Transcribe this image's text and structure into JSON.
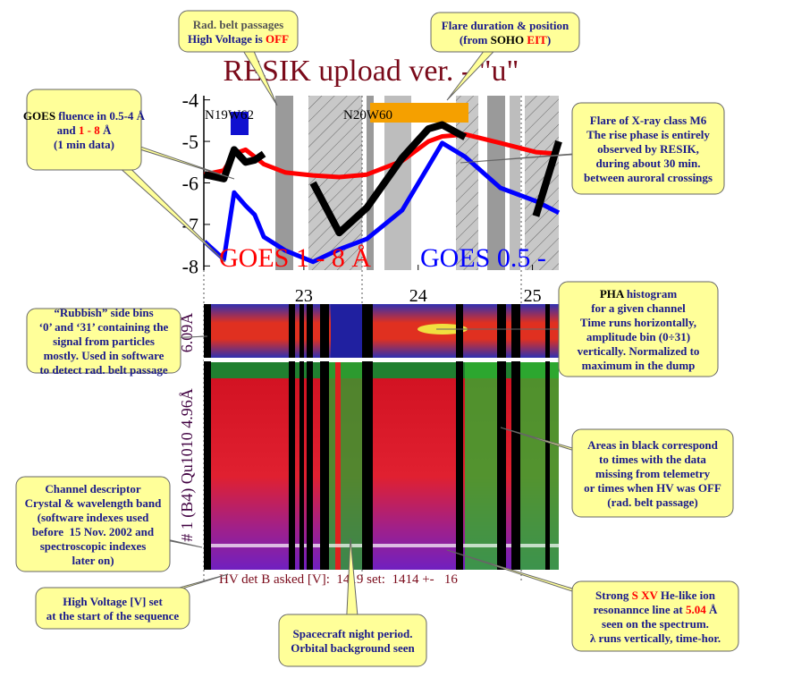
{
  "chart_data": {
    "type": "line",
    "title": "RESIK upload ver. - \"u\"",
    "x": [
      22.13,
      22.3,
      22.39,
      22.49,
      22.57,
      22.65,
      22.84,
      23.08,
      23.31,
      23.55,
      23.86,
      24.09,
      24.21,
      24.41,
      24.72,
      25.03,
      25.23
    ],
    "series": [
      {
        "name": "GOES 1 - 8 Å",
        "color": "#ff0000",
        "values": [
          -5.8,
          -5.7,
          -5.3,
          -5.2,
          -5.37,
          -5.55,
          -5.75,
          -5.82,
          -5.86,
          -5.8,
          -5.47,
          -5.0,
          -4.88,
          -4.83,
          -5.04,
          -5.26,
          -5.3
        ]
      },
      {
        "name": "GOES 0.5 -",
        "color": "#0000ff",
        "values": [
          -7.41,
          -7.84,
          -6.23,
          -6.55,
          -6.77,
          -7.3,
          -7.63,
          -7.9,
          -7.6,
          -7.35,
          -6.66,
          -5.6,
          -5.04,
          -5.37,
          -6.12,
          -6.44,
          -6.72
        ]
      },
      {
        "color": "#000000",
        "values": [
          -5.8,
          -5.9,
          -5.2,
          -5.5,
          -5.45,
          -5.3,
          null,
          -6.0,
          -7.2,
          -6.6,
          -5.4,
          -4.7,
          -4.6,
          -4.9,
          null,
          -6.8,
          -5.0
        ]
      }
    ],
    "xlim": [
      22.125,
      25.23
    ],
    "xticks": [
      23,
      24,
      25
    ],
    "ylim": [
      -8.1,
      -3.9
    ],
    "yticks": [
      -4,
      -5,
      -6,
      -7,
      -8
    ],
    "region_labels": [
      "N19W62",
      "N20W60"
    ]
  },
  "spectrogram": {
    "top_label": "6.09Å",
    "bottom_label": "# 1 (B4) Qu1010 4.96Å",
    "footer": "HV det B asked [V]:  1419 set:  1414 +-   16"
  },
  "callouts": [
    {
      "lines": [
        [
          {
            "text": "Rad. belt passages",
            "color": "#555555"
          }
        ],
        [
          {
            "text": "High Voltage is "
          },
          {
            "text": "OFF",
            "color": "#ff0000"
          }
        ]
      ]
    },
    {
      "lines": [
        [
          {
            "text": "Flare duration & position"
          }
        ],
        [
          {
            "text": "(from "
          },
          {
            "text": "SOHO",
            "color": "#000000"
          },
          {
            "text": " "
          },
          {
            "text": "EIT",
            "color": "#ff0000"
          },
          {
            "text": ")"
          }
        ]
      ]
    },
    {
      "lines": [
        [
          {
            "text": "GOES",
            "color": "#000000"
          },
          {
            "text": " fluence in 0.5-4 Å"
          }
        ],
        [
          {
            "text": "and "
          },
          {
            "text": "1 - 8",
            "color": "#ff0000"
          },
          {
            "text": " Å"
          }
        ],
        [
          {
            "text": "(1 min data)"
          }
        ]
      ]
    },
    {
      "lines": [
        [
          {
            "text": "Flare of X-ray class M6"
          }
        ],
        [
          {
            "text": "The rise phase is entirely"
          }
        ],
        [
          {
            "text": "observed by RESIK,"
          }
        ],
        [
          {
            "text": "during about 30 min."
          }
        ],
        [
          {
            "text": "between auroral crossings"
          }
        ]
      ]
    },
    {
      "lines": [
        [
          {
            "text": "“Rubbish” side bins"
          }
        ],
        [
          {
            "text": "‘0’ and ‘31’ containing the"
          }
        ],
        [
          {
            "text": "signal from particles"
          }
        ],
        [
          {
            "text": "mostly. Used in software"
          }
        ],
        [
          {
            "text": "to detect rad. belt passage"
          }
        ]
      ]
    },
    {
      "lines": [
        [
          {
            "text": "PHA",
            "color": "#000000"
          },
          {
            "text": " histogram"
          }
        ],
        [
          {
            "text": "for a given channel"
          }
        ],
        [
          {
            "text": "Time runs horizontally,"
          }
        ],
        [
          {
            "text": "amplitude bin (0÷31)"
          }
        ],
        [
          {
            "text": "vertically. Normalized to"
          }
        ],
        [
          {
            "text": "maximum in the dump"
          }
        ]
      ]
    },
    {
      "lines": [
        [
          {
            "text": "Areas in black correspond"
          }
        ],
        [
          {
            "text": "to times with the data"
          }
        ],
        [
          {
            "text": "missing from telemetry"
          }
        ],
        [
          {
            "text": "or times when HV was OFF"
          }
        ],
        [
          {
            "text": "(rad. belt passage)"
          }
        ]
      ]
    },
    {
      "lines": [
        [
          {
            "text": "Channel descriptor"
          }
        ],
        [
          {
            "text": "Crystal & wavelength band"
          }
        ],
        [
          {
            "text": "(software indexes used"
          }
        ],
        [
          {
            "text": "before  15 Nov. 2002 and"
          }
        ],
        [
          {
            "text": "spectroscopic indexes"
          }
        ],
        [
          {
            "text": "later on)"
          }
        ]
      ]
    },
    {
      "lines": [
        [
          {
            "text": "High Voltage [V] set"
          }
        ],
        [
          {
            "text": "at the start of the sequence"
          }
        ]
      ]
    },
    {
      "lines": [
        [
          {
            "text": "Spacecraft night period."
          }
        ],
        [
          {
            "text": "Orbital background seen"
          }
        ]
      ]
    },
    {
      "lines": [
        [
          {
            "text": "Strong "
          },
          {
            "text": "S XV",
            "color": "#ff0000"
          },
          {
            "text": " He-like ion"
          }
        ],
        [
          {
            "text": "resonannce line at "
          },
          {
            "text": "5.04",
            "color": "#ff0000"
          },
          {
            "text": " Å"
          }
        ],
        [
          {
            "text": "seen on the spectrum."
          }
        ],
        [
          {
            "text": "λ runs vertically, time-hor."
          }
        ]
      ]
    }
  ]
}
